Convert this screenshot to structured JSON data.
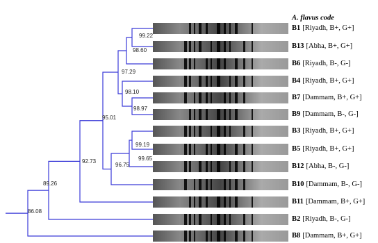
{
  "header": {
    "title": "A. flavus code"
  },
  "leaves": [
    {
      "code": "B1",
      "info": "[Riyadh, B+, G+]"
    },
    {
      "code": "B13",
      "info": "[Abha, B+, G+]"
    },
    {
      "code": "B6",
      "info": "[Riyadh, B-, G-]"
    },
    {
      "code": "B4",
      "info": "[Riyadh, B+, G+]"
    },
    {
      "code": "B7",
      "info": "[Dammam, B+, G+]"
    },
    {
      "code": "B9",
      "info": "[Dammam, B-, G-]"
    },
    {
      "code": "B3",
      "info": "[Riyadh, B+, G+]"
    },
    {
      "code": "B5",
      "info": "[Riyadh, B+, G+]"
    },
    {
      "code": "B12",
      "info": "[Abha, B-, G-]"
    },
    {
      "code": "B10",
      "info": "[Dammam, B-, G-]"
    },
    {
      "code": "B11",
      "info": "[Dammam, B+, G+]"
    },
    {
      "code": "B2",
      "info": "[Riyadh, B-, G-]"
    },
    {
      "code": "B8",
      "info": "[Dammam, B+, G+]"
    }
  ],
  "nodes": [
    "99.22",
    "98.60",
    "98.97",
    "98.10",
    "97.29",
    "99.19",
    "99.65",
    "96.75",
    "95.01",
    "92.73",
    "89.26",
    "86.08"
  ]
}
